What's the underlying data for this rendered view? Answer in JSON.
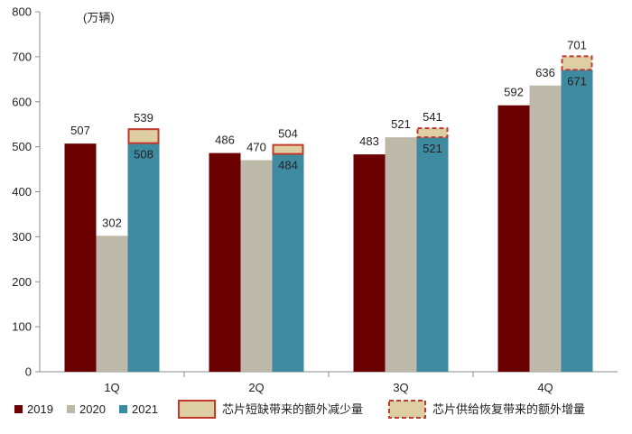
{
  "chart_data": {
    "type": "bar",
    "unit_label": "(万辆)",
    "categories": [
      "1Q",
      "2Q",
      "3Q",
      "4Q"
    ],
    "ylim": [
      0,
      800
    ],
    "yticks": [
      0,
      100,
      200,
      300,
      400,
      500,
      600,
      700,
      800
    ],
    "grid": false,
    "legend_position": "bottom",
    "series": [
      {
        "name": "2019",
        "color": "#6b0000",
        "values": [
          507,
          486,
          483,
          592
        ]
      },
      {
        "name": "2020",
        "color": "#bcb9a8",
        "values": [
          302,
          470,
          521,
          636
        ]
      },
      {
        "name": "2021",
        "color": "#3e8aa0",
        "values": [
          508,
          484,
          521,
          671
        ]
      }
    ],
    "overlays": [
      {
        "name": "芯片短缺带来的额外减少量",
        "style": "solid",
        "border_color": "#c0392b",
        "fill_color": "#ddcea4",
        "from": [
          508,
          484,
          null,
          null
        ],
        "to": [
          539,
          504,
          null,
          null
        ]
      },
      {
        "name": "芯片供给恢复带来的额外增量",
        "style": "dashed",
        "border_color": "#c0392b",
        "fill_color": "#ddcea4",
        "from": [
          null,
          null,
          521,
          671
        ],
        "to": [
          null,
          null,
          541,
          701
        ]
      }
    ],
    "data_labels": {
      "2019": [
        "507",
        "486",
        "483",
        "592"
      ],
      "2020": [
        "302",
        "470",
        "521",
        "636"
      ],
      "2021": [
        "508",
        "484",
        "521",
        "671"
      ],
      "overlay_top": [
        "539",
        "504",
        "541",
        "701"
      ]
    }
  }
}
